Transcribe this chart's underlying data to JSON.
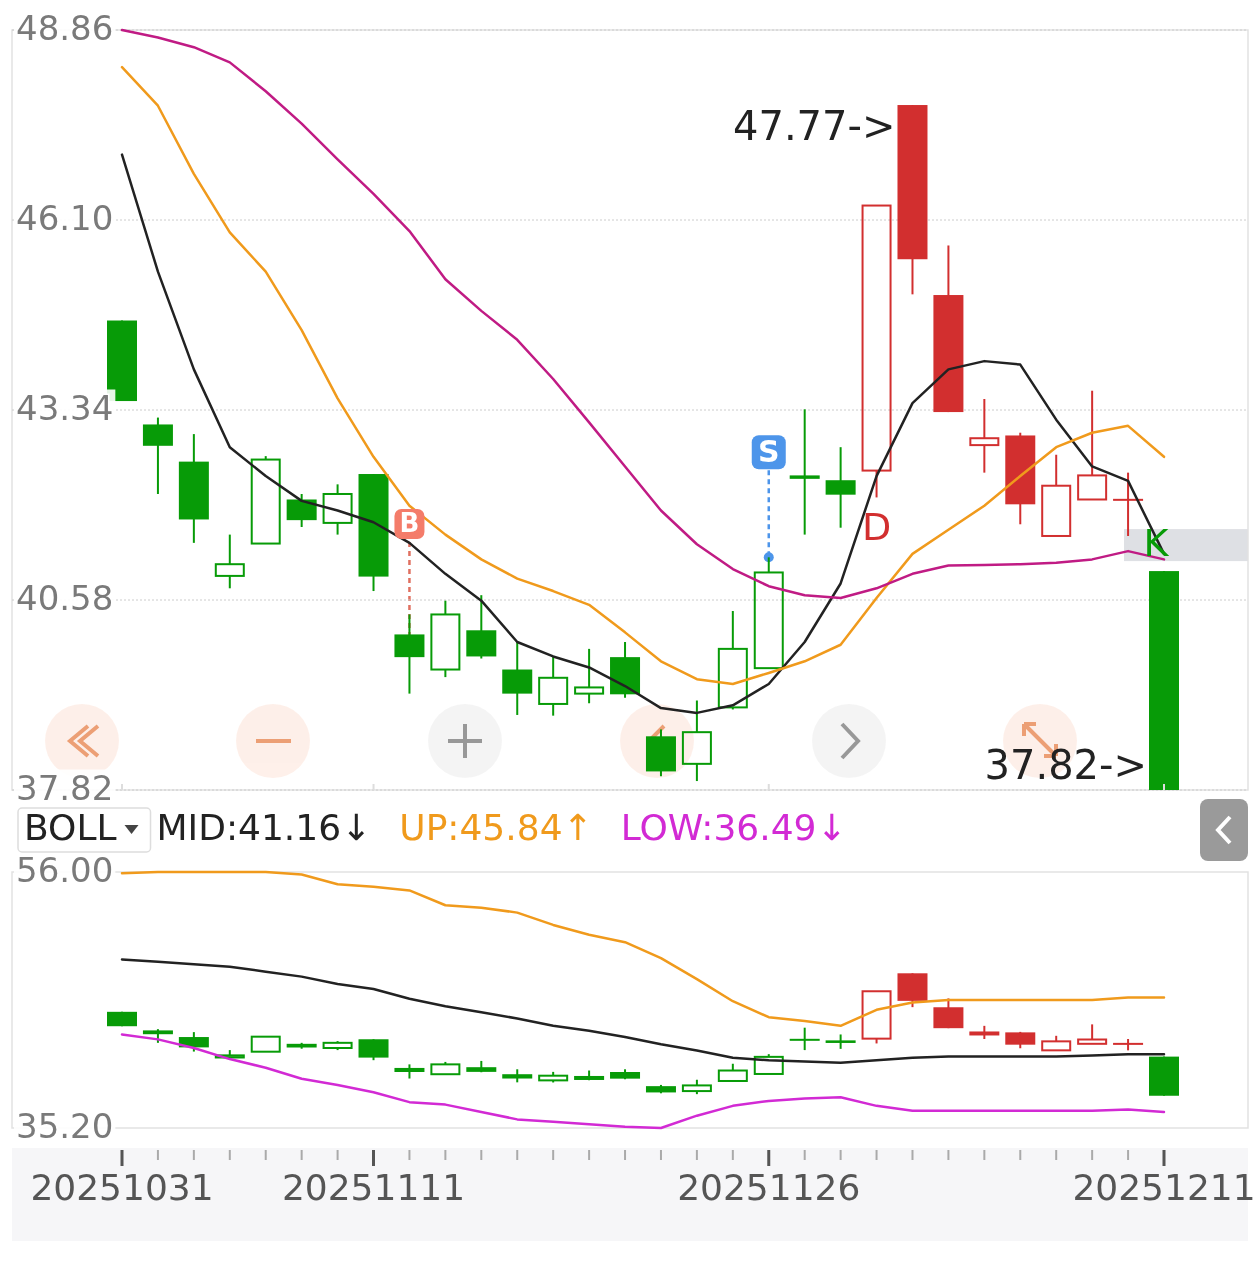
{
  "chart_data": [
    {
      "type": "candlestick",
      "categories": [
        "20251031",
        null,
        null,
        null,
        null,
        null,
        null,
        "20251111",
        null,
        null,
        null,
        null,
        null,
        null,
        null,
        null,
        null,
        null,
        "20251126",
        null,
        null,
        null,
        null,
        null,
        null,
        null,
        null,
        null,
        null,
        "20251211"
      ],
      "ohlc": [
        [
          44.64,
          44.64,
          43.47,
          43.47
        ],
        [
          43.13,
          43.23,
          42.12,
          42.82
        ],
        [
          42.59,
          42.99,
          41.41,
          41.75
        ],
        [
          40.93,
          41.53,
          40.75,
          41.1
        ],
        [
          41.4,
          42.67,
          41.39,
          42.62
        ],
        [
          42.04,
          42.12,
          41.64,
          41.74
        ],
        [
          41.7,
          42.26,
          41.53,
          42.12
        ],
        [
          42.41,
          42.41,
          40.71,
          40.92
        ],
        [
          40.08,
          40.37,
          39.22,
          39.75
        ],
        [
          39.57,
          40.57,
          39.46,
          40.37
        ],
        [
          40.14,
          40.65,
          39.73,
          39.76
        ],
        [
          39.57,
          39.97,
          38.91,
          39.22
        ],
        [
          39.07,
          39.76,
          38.9,
          39.45
        ],
        [
          39.22,
          39.87,
          39.08,
          39.31
        ],
        [
          39.75,
          39.97,
          39.16,
          39.21
        ],
        [
          38.6,
          38.7,
          38.02,
          38.09
        ],
        [
          38.2,
          39.12,
          37.95,
          38.66
        ],
        [
          39.02,
          40.42,
          38.99,
          39.87
        ],
        [
          39.59,
          41.2,
          39.59,
          40.98
        ],
        [
          42.39,
          43.35,
          41.53,
          42.34
        ],
        [
          42.32,
          42.8,
          41.63,
          42.11
        ],
        [
          42.46,
          46.31,
          42.07,
          46.31
        ],
        [
          47.77,
          47.77,
          45.02,
          45.53
        ],
        [
          45.01,
          45.73,
          43.31,
          43.31
        ],
        [
          42.83,
          43.5,
          42.43,
          42.93
        ],
        [
          42.97,
          43.01,
          41.68,
          41.97
        ],
        [
          41.51,
          42.69,
          41.51,
          42.24
        ],
        [
          42.04,
          43.62,
          42.04,
          42.39
        ],
        [
          42.03,
          42.43,
          41.51,
          42.04
        ],
        [
          41.0,
          41.0,
          37.82,
          37.82
        ]
      ],
      "colors": [
        "#079b07",
        "#079b07",
        "#079b07",
        "#079b07",
        "#079b07",
        "#079b07",
        "#079b07",
        "#079b07",
        "#079b07",
        "#079b07",
        "#079b07",
        "#079b07",
        "#079b07",
        "#079b07",
        "#079b07",
        "#079b07",
        "#079b07",
        "#079b07",
        "#079b07",
        "#079b07",
        "#079b07",
        "#d22f2f",
        "#d22f2f",
        "#d22f2f",
        "#d22f2f",
        "#d22f2f",
        "#d22f2f",
        "#d22f2f",
        "#d22f2f",
        "#079b07"
      ],
      "series": [
        {
          "type": "line",
          "color": "#222222",
          "values": [
            47.05,
            45.35,
            43.93,
            42.8,
            42.38,
            42.02,
            41.88,
            41.71,
            41.41,
            40.96,
            40.57,
            39.97,
            39.76,
            39.6,
            39.33,
            39.01,
            38.94,
            39.05,
            39.36,
            39.97,
            40.82,
            42.38,
            43.44,
            43.93,
            44.05,
            44.0,
            43.2,
            42.52,
            42.31,
            41.25
          ]
        },
        {
          "type": "line",
          "color": "#f09a1c",
          "values": [
            48.32,
            47.76,
            46.77,
            45.92,
            45.35,
            44.5,
            43.51,
            42.66,
            41.95,
            41.53,
            41.17,
            40.89,
            40.71,
            40.51,
            40.11,
            39.69,
            39.43,
            39.36,
            39.52,
            39.69,
            39.93,
            40.61,
            41.25,
            41.6,
            41.95,
            42.38,
            42.8,
            43.01,
            43.11,
            42.66
          ]
        },
        {
          "type": "line",
          "color": "#c01b84",
          "values": [
            48.86,
            48.75,
            48.61,
            48.39,
            47.97,
            47.5,
            46.98,
            46.48,
            45.94,
            45.24,
            44.78,
            44.36,
            43.79,
            43.16,
            42.52,
            41.88,
            41.39,
            41.03,
            40.78,
            40.65,
            40.61,
            40.75,
            40.96,
            41.08,
            41.09,
            41.1,
            41.12,
            41.17,
            41.29,
            41.17
          ]
        }
      ],
      "ylim": [
        37.82,
        48.86
      ],
      "yticks": [
        37.82,
        40.58,
        43.34,
        {
          "value": 46.1,
          "label": "46.10"
        },
        48.86
      ],
      "grid": "y",
      "tick_labels": "y",
      "annotations": [
        "47.77->",
        {
          "text": "B",
          "y": 39.97
        },
        {
          "text": "S",
          "y": 41.2
        },
        "D",
        "K",
        "37.82->"
      ]
    },
    {
      "type": "candlestick",
      "categories": [
        "20251031",
        null,
        null,
        null,
        null,
        null,
        null,
        "20251111",
        null,
        null,
        null,
        null,
        null,
        null,
        null,
        null,
        null,
        null,
        "20251126",
        null,
        null,
        null,
        null,
        null,
        null,
        null,
        null,
        null,
        null,
        "20251211"
      ],
      "ohlc": [
        [
          44.64,
          44.64,
          43.47,
          43.47
        ],
        [
          43.13,
          43.23,
          42.12,
          42.82
        ],
        [
          42.59,
          42.99,
          41.41,
          41.75
        ],
        [
          40.93,
          41.53,
          40.75,
          41.1
        ],
        [
          41.4,
          42.67,
          41.39,
          42.62
        ],
        [
          42.04,
          42.12,
          41.64,
          41.74
        ],
        [
          41.7,
          42.26,
          41.53,
          42.12
        ],
        [
          42.41,
          42.41,
          40.71,
          40.92
        ],
        [
          40.08,
          40.37,
          39.22,
          39.75
        ],
        [
          39.57,
          40.57,
          39.46,
          40.37
        ],
        [
          40.14,
          40.65,
          39.73,
          39.76
        ],
        [
          39.57,
          39.97,
          38.91,
          39.22
        ],
        [
          39.07,
          39.76,
          38.9,
          39.45
        ],
        [
          39.22,
          39.87,
          39.08,
          39.31
        ],
        [
          39.75,
          39.97,
          39.16,
          39.21
        ],
        [
          38.6,
          38.7,
          38.02,
          38.09
        ],
        [
          38.2,
          39.12,
          37.95,
          38.66
        ],
        [
          39.02,
          40.42,
          38.99,
          39.87
        ],
        [
          39.59,
          41.2,
          39.59,
          40.98
        ],
        [
          42.39,
          43.35,
          41.53,
          42.34
        ],
        [
          42.32,
          42.8,
          41.63,
          42.11
        ],
        [
          42.46,
          46.31,
          42.07,
          46.31
        ],
        [
          47.77,
          47.77,
          45.02,
          45.53
        ],
        [
          45.01,
          45.73,
          43.31,
          43.31
        ],
        [
          42.83,
          43.5,
          42.43,
          42.93
        ],
        [
          42.97,
          43.01,
          41.68,
          41.97
        ],
        [
          41.51,
          42.69,
          41.51,
          42.24
        ],
        [
          42.04,
          43.62,
          42.04,
          42.39
        ],
        [
          42.03,
          42.43,
          41.51,
          42.04
        ],
        [
          41.0,
          41.0,
          37.82,
          37.82
        ]
      ],
      "colors": [
        "#079b07",
        "#079b07",
        "#079b07",
        "#079b07",
        "#079b07",
        "#079b07",
        "#079b07",
        "#079b07",
        "#079b07",
        "#079b07",
        "#079b07",
        "#079b07",
        "#079b07",
        "#079b07",
        "#079b07",
        "#079b07",
        "#079b07",
        "#079b07",
        "#079b07",
        "#079b07",
        "#079b07",
        "#d22f2f",
        "#d22f2f",
        "#d22f2f",
        "#d22f2f",
        "#d22f2f",
        "#d22f2f",
        "#d22f2f",
        "#d22f2f",
        "#079b07"
      ],
      "legend_title": "BOLL",
      "legend": "top left",
      "series": [
        {
          "type": "line",
          "name": "MID:41.16↓",
          "color": "#222222",
          "values": [
            48.9,
            48.7,
            48.5,
            48.3,
            47.9,
            47.5,
            46.9,
            46.5,
            45.7,
            45.1,
            44.6,
            44.1,
            43.5,
            43.1,
            42.6,
            42.0,
            41.5,
            40.9,
            40.7,
            40.6,
            40.5,
            40.7,
            40.9,
            41.0,
            41.0,
            41.0,
            41.0,
            41.1,
            41.2,
            41.2
          ]
        },
        {
          "type": "line",
          "name": "UP:45.84↑",
          "color": "#f09a1c",
          "values": [
            55.9,
            56.0,
            56.0,
            56.0,
            56.0,
            55.8,
            55.0,
            54.8,
            54.5,
            53.3,
            53.1,
            52.7,
            51.7,
            50.9,
            50.3,
            49.0,
            47.3,
            45.5,
            44.2,
            43.9,
            43.5,
            44.8,
            45.4,
            45.6,
            45.6,
            45.6,
            45.6,
            45.6,
            45.8,
            45.8
          ]
        },
        {
          "type": "line",
          "name": "LOW:36.49↓",
          "color": "#d22ad4",
          "values": [
            42.8,
            42.4,
            41.7,
            40.8,
            40.1,
            39.2,
            38.7,
            38.1,
            37.3,
            37.1,
            36.5,
            35.9,
            35.7,
            35.5,
            35.3,
            35.2,
            36.2,
            37.0,
            37.4,
            37.6,
            37.7,
            37.0,
            36.6,
            36.6,
            36.6,
            36.6,
            36.6,
            36.6,
            36.7,
            36.5
          ]
        }
      ],
      "ylim": [
        35.2,
        56.0
      ],
      "yticks": [
        {
          "value": 35.2,
          "label": "35.20"
        },
        {
          "value": 56.0,
          "label": "56.00"
        }
      ]
    }
  ]
}
